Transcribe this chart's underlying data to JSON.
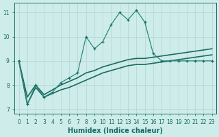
{
  "xlabel": "Humidex (Indice chaleur)",
  "background_color": "#ceecea",
  "grid_color": "#b8dcda",
  "line_color_dark": "#1a6b60",
  "line_color_mid": "#2a8878",
  "xlim": [
    -0.5,
    23.5
  ],
  "ylim": [
    6.8,
    11.4
  ],
  "xticks": [
    0,
    1,
    2,
    3,
    4,
    5,
    6,
    7,
    8,
    9,
    10,
    11,
    12,
    13,
    14,
    15,
    16,
    17,
    18,
    19,
    20,
    21,
    22,
    23
  ],
  "yticks": [
    7,
    8,
    9,
    10,
    11
  ],
  "curve_main_x": [
    0,
    1,
    2,
    3,
    4,
    5,
    6,
    7,
    8,
    9,
    10,
    11,
    12,
    13,
    14,
    15,
    16,
    17,
    18,
    19,
    20,
    21,
    22,
    23
  ],
  "curve_main_y": [
    9.0,
    7.2,
    8.0,
    7.5,
    7.7,
    8.1,
    8.3,
    8.5,
    10.0,
    9.5,
    9.8,
    10.5,
    11.0,
    10.7,
    11.1,
    10.6,
    9.3,
    9.0,
    9.0,
    9.0,
    9.0,
    9.0,
    9.0,
    9.0
  ],
  "curve_upper_x": [
    0,
    1,
    2,
    3,
    4,
    5,
    6,
    7,
    8,
    9,
    10,
    11,
    12,
    13,
    14,
    15,
    16,
    17,
    18,
    19,
    20,
    21,
    22,
    23
  ],
  "curve_upper_y": [
    9.0,
    7.5,
    8.0,
    7.6,
    7.8,
    8.0,
    8.15,
    8.3,
    8.5,
    8.6,
    8.75,
    8.85,
    8.95,
    9.05,
    9.1,
    9.1,
    9.15,
    9.2,
    9.25,
    9.3,
    9.35,
    9.4,
    9.45,
    9.5
  ],
  "curve_lower_x": [
    0,
    1,
    2,
    3,
    4,
    5,
    6,
    7,
    8,
    9,
    10,
    11,
    12,
    13,
    14,
    15,
    16,
    17,
    18,
    19,
    20,
    21,
    22,
    23
  ],
  "curve_lower_y": [
    9.0,
    7.2,
    7.9,
    7.5,
    7.65,
    7.8,
    7.9,
    8.05,
    8.2,
    8.35,
    8.5,
    8.6,
    8.7,
    8.8,
    8.85,
    8.85,
    8.9,
    8.95,
    9.0,
    9.05,
    9.1,
    9.15,
    9.2,
    9.25
  ]
}
